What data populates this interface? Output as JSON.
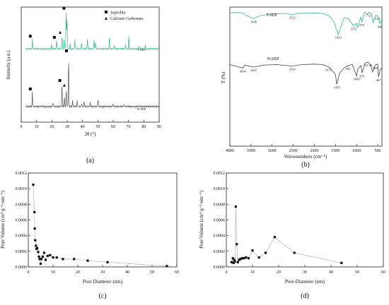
{
  "chart_data": [
    {
      "id": "a",
      "type": "line",
      "panel_label": "(a)",
      "xlabel": "2θ (°)",
      "ylabel": "Intensity (a.u.)",
      "xlim": [
        0,
        90
      ],
      "xticks": [
        0,
        10,
        20,
        30,
        40,
        50,
        60,
        70,
        80,
        90
      ],
      "legend": {
        "placement": "top-right",
        "items": [
          {
            "marker": "square",
            "label": "Sepiolite"
          },
          {
            "marker": "triangle",
            "label": "Calcium Carbonate"
          }
        ]
      },
      "series": [
        {
          "name": "T-SEP",
          "color": "#2bb88a",
          "peaks": [
            [
              7.3,
              0.25
            ],
            [
              19.8,
              0.12
            ],
            [
              23.0,
              0.22
            ],
            [
              26.6,
              0.35
            ],
            [
              28.0,
              0.25
            ],
            [
              29.3,
              0.97
            ],
            [
              29.9,
              0.95
            ],
            [
              31.9,
              0.16
            ],
            [
              35.0,
              0.25
            ],
            [
              39.4,
              0.18
            ],
            [
              43.2,
              0.28
            ],
            [
              47.5,
              0.24
            ],
            [
              48.5,
              0.18
            ],
            [
              57.5,
              0.28
            ],
            [
              60.7,
              0.1
            ],
            [
              68.0,
              0.12
            ],
            [
              70.2,
              0.34
            ],
            [
              77.0,
              0.06
            ],
            [
              81.0,
              0.1
            ]
          ]
        },
        {
          "name": "N-SEP",
          "color": "#555555",
          "peaks": [
            [
              7.3,
              0.28
            ],
            [
              20.8,
              0.08
            ],
            [
              26.6,
              0.44
            ],
            [
              28.2,
              0.18
            ],
            [
              29.4,
              0.35
            ],
            [
              30.9,
              1.0
            ],
            [
              33.5,
              0.12
            ],
            [
              36.5,
              0.1
            ],
            [
              39.5,
              0.06
            ],
            [
              41.1,
              0.12
            ],
            [
              45.0,
              0.08
            ],
            [
              50.1,
              0.16
            ],
            [
              59.9,
              0.06
            ],
            [
              67.0,
              0.05
            ]
          ]
        }
      ],
      "markers": [
        {
          "series": "T-SEP",
          "x": 7.3,
          "marker": "square"
        },
        {
          "series": "T-SEP",
          "x": 23.0,
          "marker": "square"
        },
        {
          "series": "T-SEP",
          "x": 26.8,
          "marker": "triangle"
        },
        {
          "series": "T-SEP",
          "x": 29.3,
          "marker": "square"
        },
        {
          "series": "N-SEP",
          "x": 7.3,
          "marker": "square"
        },
        {
          "series": "N-SEP",
          "x": 26.6,
          "marker": "square"
        },
        {
          "series": "N-SEP",
          "x": 29.5,
          "marker": "triangle"
        },
        {
          "series": "N-SEP",
          "x": 30.9,
          "marker": "square"
        }
      ]
    },
    {
      "id": "b",
      "type": "line",
      "panel_label": "(b)",
      "xlabel": "Wavenumbers (cm⁻¹)",
      "ylabel": "T (%)",
      "xlim": [
        4000,
        400
      ],
      "xticks": [
        4000,
        3500,
        3000,
        2500,
        2000,
        1500,
        1000,
        500
      ],
      "series": [
        {
          "name": "T-SEP",
          "color": "#2bb88a",
          "points": [
            [
              4000,
              0.93
            ],
            [
              3750,
              0.93
            ],
            [
              3690,
              0.92
            ],
            [
              3600,
              0.85
            ],
            [
              3436,
              0.78
            ],
            [
              3300,
              0.85
            ],
            [
              3000,
              0.9
            ],
            [
              2700,
              0.91
            ],
            [
              2522,
              0.88
            ],
            [
              2400,
              0.91
            ],
            [
              2000,
              0.92
            ],
            [
              1800,
              0.91
            ],
            [
              1650,
              0.85
            ],
            [
              1550,
              0.72
            ],
            [
              1433,
              0.38
            ],
            [
              1300,
              0.8
            ],
            [
              1200,
              0.78
            ],
            [
              1072,
              0.6
            ],
            [
              1000,
              0.66
            ],
            [
              980,
              0.55
            ],
            [
              900,
              0.82
            ],
            [
              875,
              0.7
            ],
            [
              800,
              0.95
            ],
            [
              750,
              0.88
            ],
            [
              712,
              0.94
            ],
            [
              650,
              0.9
            ],
            [
              610,
              0.68
            ],
            [
              560,
              0.84
            ],
            [
              510,
              0.86
            ],
            [
              480,
              0.8
            ],
            [
              448,
              0.65
            ],
            [
              420,
              0.72
            ],
            [
              400,
              0.75
            ]
          ],
          "annotations": [
            [
              3436,
              "3436"
            ],
            [
              2522,
              "2522"
            ],
            [
              1433,
              "1433"
            ],
            [
              1072,
              "1072"
            ],
            [
              875,
              "875"
            ],
            [
              712,
              "712"
            ],
            [
              510,
              "510"
            ],
            [
              448,
              "448"
            ]
          ]
        },
        {
          "name": "N-SEP",
          "color": "#444444",
          "points": [
            [
              4000,
              0.95
            ],
            [
              3694,
              0.88
            ],
            [
              3650,
              0.94
            ],
            [
              3437,
              0.9
            ],
            [
              3200,
              0.94
            ],
            [
              2900,
              0.95
            ],
            [
              2524,
              0.92
            ],
            [
              2300,
              0.95
            ],
            [
              2000,
              0.96
            ],
            [
              1800,
              0.95
            ],
            [
              1650,
              0.9
            ],
            [
              1500,
              0.75
            ],
            [
              1470,
              0.55
            ],
            [
              1400,
              0.78
            ],
            [
              1300,
              0.88
            ],
            [
              1200,
              0.93
            ],
            [
              1100,
              0.95
            ],
            [
              1000,
              0.72
            ],
            [
              970,
              0.86
            ],
            [
              900,
              0.93
            ],
            [
              870,
              0.78
            ],
            [
              800,
              0.98
            ],
            [
              735,
              1.0
            ],
            [
              700,
              0.98
            ],
            [
              650,
              0.9
            ],
            [
              620,
              0.8
            ],
            [
              560,
              0.94
            ],
            [
              500,
              0.96
            ],
            [
              480,
              0.7
            ],
            [
              440,
              0.85
            ],
            [
              400,
              0.88
            ]
          ],
          "annotations": [
            [
              3694,
              "3694"
            ],
            [
              3437,
              "3437"
            ],
            [
              2524,
              "2524"
            ],
            [
              1470,
              "1470"
            ],
            [
              1673,
              "1673"
            ],
            [
              1000,
              "1000"
            ],
            [
              870,
              "879"
            ],
            [
              1200,
              "945"
            ],
            [
              735,
              "733.38"
            ],
            [
              560,
              "560"
            ],
            [
              480,
              "467"
            ]
          ]
        }
      ],
      "series_labels": [
        "T-SEP",
        "N-SEP"
      ]
    },
    {
      "id": "c",
      "type": "line",
      "panel_label": "(c)",
      "xlabel": "Pore Diameter (nm)",
      "ylabel": "Pore Volume (cm³·g⁻¹·nm⁻¹)",
      "xlim": [
        0,
        60
      ],
      "ylim": [
        0,
        0.0012
      ],
      "xticks": [
        "0",
        "10",
        "20",
        "30",
        "40",
        "50",
        "60"
      ],
      "yticks": [
        "0.0000",
        "0.0002",
        "0.0004",
        "0.0006",
        "0.0008",
        "0.0010",
        "0.0012"
      ],
      "x": [
        2.0,
        2.5,
        2.6,
        2.8,
        3.1,
        3.3,
        3.6,
        4.0,
        4.3,
        4.6,
        5.0,
        5.3,
        5.8,
        6.4,
        7.0,
        7.8,
        8.8,
        10.0,
        11.5,
        14.0,
        18.5,
        24.0,
        32.0,
        56.0
      ],
      "values": [
        0.00105,
        0.0007,
        0.00049,
        0.00034,
        0.00027,
        0.00023,
        0.00024,
        0.00019,
        0.00013,
        0.0001,
        4e-05,
        0.0001,
        0.00013,
        0.00018,
        9e-05,
        0.00014,
        0.00015,
        0.00012,
        0.00012,
        0.0001,
        0.0001,
        8e-05,
        6e-05,
        1e-05
      ]
    },
    {
      "id": "d",
      "type": "line",
      "panel_label": "(d)",
      "xlabel": "Pore Diameter (nm)",
      "ylabel": "Pore Volume (cm³·g⁻¹·nm⁻¹)",
      "xlim": [
        0,
        60
      ],
      "ylim": [
        0,
        0.0012
      ],
      "xticks": [
        "0",
        "10",
        "20",
        "30",
        "40",
        "50",
        "60"
      ],
      "yticks": [
        "0.0000",
        "0.0002",
        "0.0004",
        "0.0006",
        "0.0008",
        "0.0010",
        "0.0012"
      ],
      "x": [
        2.0,
        2.5,
        2.8,
        3.0,
        3.3,
        3.6,
        4.0,
        4.4,
        4.9,
        5.4,
        6.0,
        6.7,
        7.5,
        8.5,
        10.0,
        12.5,
        15.0,
        18.5,
        26.0,
        44.0
      ],
      "values": [
        6e-05,
        0.00011,
        5e-05,
        9e-05,
        7e-05,
        0.00077,
        0.00029,
        6e-05,
        9e-05,
        0.0001,
        0.00011,
        0.00011,
        0.00012,
        0.00011,
        0.00021,
        0.00012,
        0.00018,
        0.00038,
        0.00018,
        5e-05
      ]
    }
  ]
}
